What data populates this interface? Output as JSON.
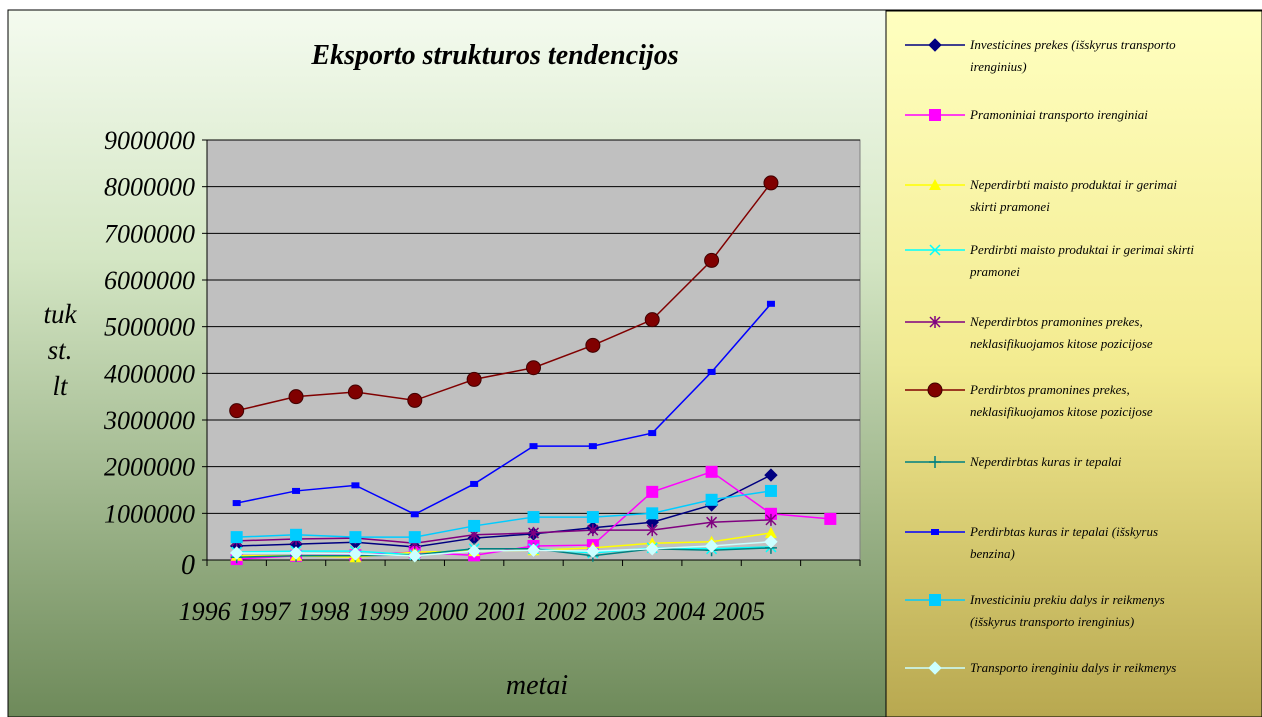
{
  "chart_data": {
    "type": "line",
    "title": "Eksporto strukturos tendencijos",
    "y_label": "tuk st. lt",
    "x_label": "metai",
    "categories": [
      "1996",
      "1997",
      "1998",
      "1999",
      "2000",
      "2001",
      "2002",
      "2003",
      "2004",
      "2005",
      null
    ],
    "ylim": [
      0,
      9000000
    ],
    "yticks": [
      0,
      1000000,
      2000000,
      3000000,
      4000000,
      5000000,
      6000000,
      7000000,
      8000000,
      9000000
    ],
    "grid": true,
    "legend": "right",
    "series": [
      {
        "name": "Investicines prekes (išskyrus transporto irenginius)",
        "color": "#000080",
        "marker": "diamond",
        "values": [
          300000,
          340000,
          380000,
          280000,
          470000,
          560000,
          690000,
          810000,
          1180000,
          1820000,
          null
        ]
      },
      {
        "name": "Pramoniniai transporto irenginiai",
        "color": "#ff00ff",
        "marker": "square",
        "values": [
          20000,
          90000,
          100000,
          170000,
          100000,
          300000,
          320000,
          1460000,
          1890000,
          990000,
          880000
        ]
      },
      {
        "name": "Neperdirbti  maisto produktai ir gerimai skirti pramonei",
        "color": "#ffff00",
        "marker": "triangle",
        "values": [
          90000,
          90000,
          60000,
          170000,
          190000,
          210000,
          260000,
          360000,
          390000,
          580000,
          null
        ]
      },
      {
        "name": "Perdirbti maisto produktai ir gerimai skirti pramonei",
        "color": "#00ffff",
        "marker": "x",
        "values": [
          170000,
          190000,
          190000,
          110000,
          240000,
          240000,
          150000,
          260000,
          240000,
          280000,
          null
        ]
      },
      {
        "name": "Neperdirbtos pramonines prekes, neklasifikuojamos kitose pozicijose",
        "color": "#800080",
        "marker": "star",
        "values": [
          410000,
          450000,
          470000,
          360000,
          540000,
          580000,
          640000,
          640000,
          810000,
          860000,
          null
        ]
      },
      {
        "name": "Perdirbtos pramonines prekes, neklasifikuojamos kitose pozicijose",
        "color": "#800000",
        "marker": "circle",
        "values": [
          3200000,
          3500000,
          3600000,
          3420000,
          3870000,
          4120000,
          4600000,
          5150000,
          6420000,
          8080000,
          null
        ]
      },
      {
        "name": "Neperdirbtas kuras ir tepalai",
        "color": "#008080",
        "marker": "plus",
        "values": [
          60000,
          90000,
          90000,
          110000,
          240000,
          240000,
          90000,
          240000,
          210000,
          260000,
          null
        ]
      },
      {
        "name": "Perdirbtas kuras ir tepalai (išskyrus benzina)",
        "color": "#0000ff",
        "marker": "smallsquare",
        "values": [
          1220000,
          1480000,
          1600000,
          980000,
          1630000,
          2440000,
          2440000,
          2720000,
          4030000,
          5490000,
          null
        ]
      },
      {
        "name": "Investiciniu prekiu dalys ir reikmenys (išskyrus transporto irenginius)",
        "color": "#00ccff",
        "marker": "square",
        "values": [
          490000,
          540000,
          490000,
          490000,
          730000,
          920000,
          920000,
          1000000,
          1290000,
          1480000,
          null
        ]
      },
      {
        "name": "Transporto irenginiu dalys ir reikmenys",
        "color": "#ccffff",
        "marker": "diamond",
        "values": [
          150000,
          150000,
          130000,
          90000,
          190000,
          210000,
          190000,
          240000,
          300000,
          390000,
          null
        ]
      }
    ]
  }
}
